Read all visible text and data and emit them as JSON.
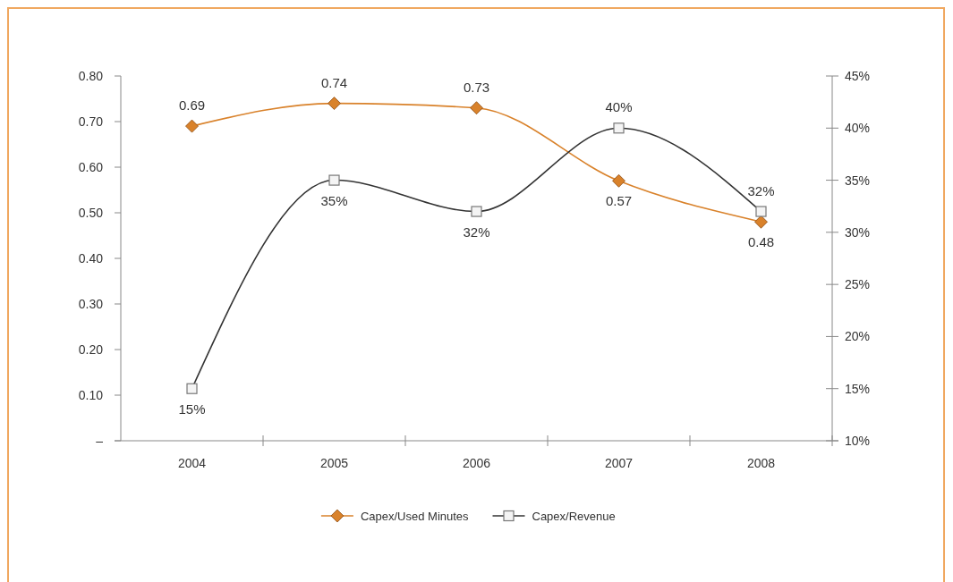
{
  "chart_data": {
    "type": "line",
    "categories": [
      "2004",
      "2005",
      "2006",
      "2007",
      "2008"
    ],
    "series": [
      {
        "name": "Capex/Used Minutes",
        "color": "#d9822b",
        "marker": "diamond",
        "values": [
          0.69,
          0.74,
          0.73,
          0.57,
          0.48
        ],
        "value_labels": [
          "0.69",
          "0.74",
          "0.73",
          "0.57",
          "0.48"
        ]
      },
      {
        "name": "Capex/Revenue",
        "color": "#333333",
        "marker": "square",
        "axis": "y2",
        "values": [
          15,
          35,
          32,
          40,
          32
        ],
        "value_labels": [
          "15%",
          "35%",
          "32%",
          "40%",
          "32%"
        ]
      }
    ],
    "ylim": [
      0,
      0.8
    ],
    "yticks": [
      {
        "value": 0,
        "label": "–"
      },
      {
        "value": 0.1,
        "label": "0.10"
      },
      {
        "value": 0.2,
        "label": "0.20"
      },
      {
        "value": 0.3,
        "label": "0.30"
      },
      {
        "value": 0.4,
        "label": "0.40"
      },
      {
        "value": 0.5,
        "label": "0.50"
      },
      {
        "value": 0.6,
        "label": "0.60"
      },
      {
        "value": 0.7,
        "label": "0.70"
      },
      {
        "value": 0.8,
        "label": "0.80"
      }
    ],
    "y2lim": [
      10,
      45
    ],
    "y2ticks": [
      {
        "value": 10,
        "label": "10%"
      },
      {
        "value": 15,
        "label": "15%"
      },
      {
        "value": 20,
        "label": "20%"
      },
      {
        "value": 25,
        "label": "25%"
      },
      {
        "value": 30,
        "label": "30%"
      },
      {
        "value": 35,
        "label": "35%"
      },
      {
        "value": 40,
        "label": "40%"
      },
      {
        "value": 45,
        "label": "45%"
      }
    ],
    "grid": false,
    "legend": "bottom"
  }
}
